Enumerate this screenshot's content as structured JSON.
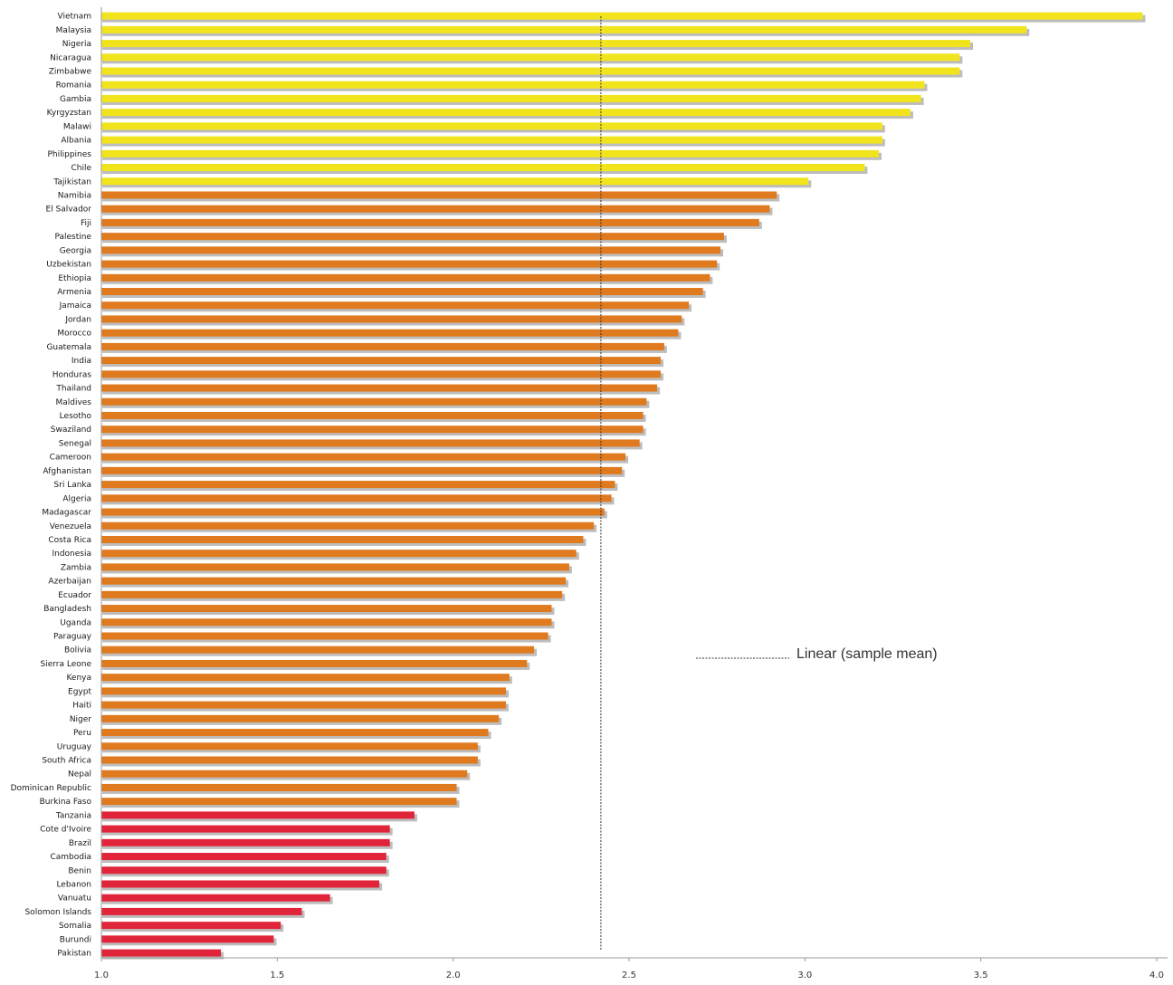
{
  "chart_data": {
    "type": "bar",
    "orientation": "horizontal",
    "categories": [
      "Vietnam",
      "Malaysia",
      "Nigeria",
      "Nicaragua",
      "Zimbabwe",
      "Romania",
      "Gambia",
      "Kyrgyzstan",
      "Malawi",
      "Albania",
      "Philippines",
      "Chile",
      "Tajikistan",
      "Namibia",
      "El Salvador",
      "Fiji",
      "Palestine",
      "Georgia",
      "Uzbekistan",
      "Ethiopia",
      "Armenia",
      "Jamaica",
      "Jordan",
      "Morocco",
      "Guatemala",
      "India",
      "Honduras",
      "Thailand",
      "Maldives",
      "Lesotho",
      "Swaziland",
      "Senegal",
      "Cameroon",
      "Afghanistan",
      "Sri Lanka",
      "Algeria",
      "Madagascar",
      "Venezuela",
      "Costa Rica",
      "Indonesia",
      "Zambia",
      "Azerbaijan",
      "Ecuador",
      "Bangladesh",
      "Uganda",
      "Paraguay",
      "Bolivia",
      "Sierra Leone",
      "Kenya",
      "Egypt",
      "Haiti",
      "Niger",
      "Peru",
      "Uruguay",
      "South Africa",
      "Nepal",
      "Dominican Republic",
      "Burkina Faso",
      "Tanzania",
      "Cote d'Ivoire",
      "Brazil",
      "Cambodia",
      "Benin",
      "Lebanon",
      "Vanuatu",
      "Solomon Islands",
      "Somalia",
      "Burundi",
      "Pakistan"
    ],
    "values": [
      3.96,
      3.63,
      3.47,
      3.44,
      3.44,
      3.34,
      3.33,
      3.3,
      3.22,
      3.22,
      3.21,
      3.17,
      3.01,
      2.92,
      2.9,
      2.87,
      2.77,
      2.76,
      2.75,
      2.73,
      2.71,
      2.67,
      2.65,
      2.64,
      2.6,
      2.59,
      2.59,
      2.58,
      2.55,
      2.54,
      2.54,
      2.53,
      2.49,
      2.48,
      2.46,
      2.45,
      2.43,
      2.4,
      2.37,
      2.35,
      2.33,
      2.32,
      2.31,
      2.28,
      2.28,
      2.27,
      2.23,
      2.21,
      2.16,
      2.15,
      2.15,
      2.13,
      2.1,
      2.07,
      2.07,
      2.04,
      2.01,
      2.01,
      1.89,
      1.82,
      1.82,
      1.81,
      1.81,
      1.79,
      1.65,
      1.57,
      1.51,
      1.49,
      1.34
    ],
    "groups": [
      {
        "color": "#f2e41c",
        "count": 13
      },
      {
        "color": "#e07a1e",
        "count": 45
      },
      {
        "color": "#e0253a",
        "count": 11
      }
    ],
    "x_ticks": [
      "1.0",
      "1.5",
      "2.0",
      "2.5",
      "3.0",
      "3.5",
      "4.0"
    ],
    "xlim": [
      1.0,
      4.0
    ],
    "reference_line": {
      "value": 2.42
    },
    "legend": {
      "label": "Linear (sample mean)",
      "placement": "right-middle"
    },
    "grid": false,
    "title": "",
    "xlabel": "",
    "ylabel": ""
  }
}
